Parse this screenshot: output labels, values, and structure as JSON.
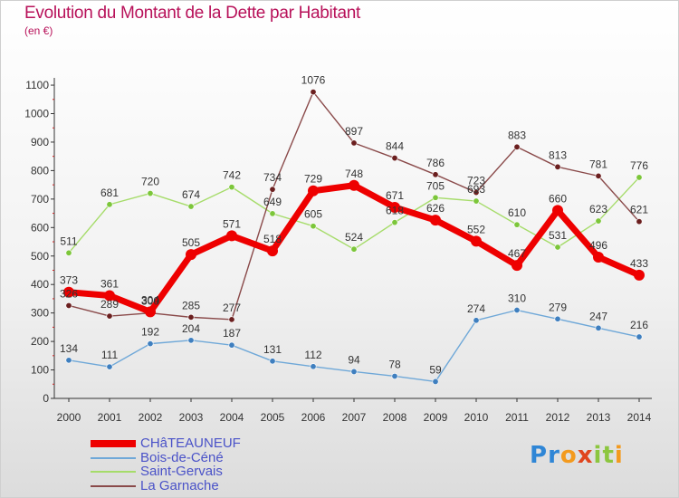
{
  "title": "Evolution du Montant de la Dette par Habitant",
  "unit": "(en €)",
  "logo": {
    "letters": [
      "P",
      "r",
      "o",
      "x",
      "i",
      "t",
      "i"
    ],
    "colors": [
      "#2f86d6",
      "#2f86d6",
      "#f39a1e",
      "#e0451e",
      "#8cc63f",
      "#8cc63f",
      "#f39a1e"
    ]
  },
  "colors": {
    "title": "#b8125a",
    "legend_text": "#4a52c8",
    "axis": "#333333"
  },
  "chart_data": {
    "type": "line",
    "x": [
      2000,
      2001,
      2002,
      2003,
      2004,
      2005,
      2006,
      2007,
      2008,
      2009,
      2010,
      2011,
      2012,
      2013,
      2014
    ],
    "ylim": [
      0,
      1100
    ],
    "yticks": [
      0,
      100,
      200,
      300,
      400,
      500,
      600,
      700,
      800,
      900,
      1000,
      1100
    ],
    "grid": false,
    "legend_position": "bottom-left",
    "series": [
      {
        "name": "CHâTEAUNEUF",
        "color": "#ee0000",
        "marker": "#ee0000",
        "width": 7,
        "values": [
          373,
          361,
          304,
          505,
          571,
          518,
          729,
          748,
          671,
          626,
          552,
          467,
          660,
          496,
          433
        ]
      },
      {
        "name": "Bois-de-Céné",
        "color": "#6fa8d8",
        "marker": "#3f7fbf",
        "width": 1.4,
        "values": [
          134,
          111,
          192,
          204,
          187,
          131,
          112,
          94,
          78,
          59,
          274,
          310,
          279,
          247,
          216
        ]
      },
      {
        "name": "Saint-Gervais",
        "color": "#a6dc6a",
        "marker": "#7cc63a",
        "width": 1.4,
        "values": [
          511,
          681,
          720,
          674,
          742,
          649,
          605,
          524,
          618,
          705,
          693,
          610,
          531,
          623,
          776
        ]
      },
      {
        "name": "La Garnache",
        "color": "#8a4a4a",
        "marker": "#6b1f1f",
        "width": 1.4,
        "values": [
          326,
          289,
          300,
          285,
          277,
          734,
          1076,
          897,
          844,
          786,
          723,
          883,
          813,
          781,
          621
        ]
      }
    ]
  }
}
